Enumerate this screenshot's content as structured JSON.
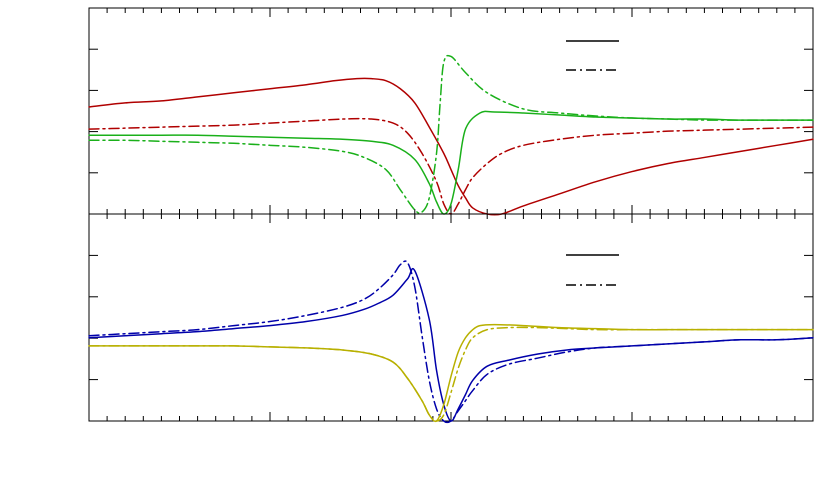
{
  "chart_data": [
    {
      "type": "line",
      "panel": "upper",
      "xlim": [
        0,
        1
      ],
      "ylim": [
        0,
        1
      ],
      "x_minor_ticks": 40,
      "x_major_ticks": 4,
      "y_ticks": 4,
      "legend": {
        "placement": "top-right",
        "entries": [
          {
            "dash": "solid"
          },
          {
            "dash": "dashdot"
          }
        ]
      },
      "series": [
        {
          "color": "#b00000",
          "dash": "solid",
          "x": [
            0,
            0.05,
            0.1,
            0.15,
            0.2,
            0.25,
            0.3,
            0.34,
            0.37,
            0.39,
            0.41,
            0.43,
            0.45,
            0.47,
            0.49,
            0.5,
            0.51,
            0.52,
            0.53,
            0.55,
            0.57,
            0.6,
            0.65,
            0.7,
            0.75,
            0.8,
            0.85,
            0.9,
            0.95,
            1
          ],
          "y": [
            0.53,
            0.55,
            0.56,
            0.58,
            0.6,
            0.62,
            0.64,
            0.66,
            0.67,
            0.67,
            0.66,
            0.62,
            0.55,
            0.43,
            0.3,
            0.22,
            0.14,
            0.08,
            0.03,
            0,
            0,
            0.04,
            0.1,
            0.16,
            0.21,
            0.25,
            0.28,
            0.31,
            0.34,
            0.37
          ]
        },
        {
          "color": "#b00000",
          "dash": "dashdot",
          "x": [
            0,
            0.05,
            0.1,
            0.15,
            0.2,
            0.25,
            0.3,
            0.35,
            0.39,
            0.42,
            0.44,
            0.46,
            0.48,
            0.49,
            0.5,
            0.51,
            0.52,
            0.53,
            0.55,
            0.57,
            0.6,
            0.65,
            0.7,
            0.75,
            0.8,
            0.85,
            0.9,
            0.95,
            1
          ],
          "y": [
            0.42,
            0.425,
            0.43,
            0.435,
            0.44,
            0.45,
            0.46,
            0.47,
            0.47,
            0.45,
            0.4,
            0.3,
            0.16,
            0.05,
            0,
            0.05,
            0.12,
            0.18,
            0.25,
            0.3,
            0.34,
            0.37,
            0.39,
            0.4,
            0.41,
            0.415,
            0.42,
            0.425,
            0.43
          ]
        },
        {
          "color": "#1ab01a",
          "dash": "solid",
          "x": [
            0,
            0.05,
            0.1,
            0.15,
            0.2,
            0.25,
            0.3,
            0.35,
            0.39,
            0.42,
            0.45,
            0.47,
            0.48,
            0.49,
            0.5,
            0.51,
            0.52,
            0.54,
            0.56,
            0.6,
            0.65,
            0.7,
            0.75,
            0.8,
            0.85,
            0.9,
            0.95,
            1
          ],
          "y": [
            0.39,
            0.39,
            0.39,
            0.39,
            0.385,
            0.38,
            0.375,
            0.37,
            0.36,
            0.34,
            0.27,
            0.15,
            0.06,
            0,
            0.05,
            0.22,
            0.42,
            0.5,
            0.505,
            0.5,
            0.49,
            0.48,
            0.475,
            0.47,
            0.47,
            0.465,
            0.465,
            0.465
          ]
        },
        {
          "color": "#1ab01a",
          "dash": "dashdot",
          "x": [
            0,
            0.05,
            0.1,
            0.15,
            0.2,
            0.25,
            0.3,
            0.35,
            0.38,
            0.41,
            0.43,
            0.45,
            0.46,
            0.47,
            0.48,
            0.485,
            0.49,
            0.5,
            0.52,
            0.55,
            0.6,
            0.65,
            0.7,
            0.75,
            0.8,
            0.85,
            0.9,
            0.95,
            1
          ],
          "y": [
            0.365,
            0.365,
            0.36,
            0.355,
            0.35,
            0.34,
            0.33,
            0.31,
            0.28,
            0.22,
            0.12,
            0.02,
            0.01,
            0.08,
            0.3,
            0.55,
            0.75,
            0.78,
            0.7,
            0.6,
            0.52,
            0.5,
            0.485,
            0.475,
            0.47,
            0.465,
            0.465,
            0.465,
            0.465
          ]
        }
      ]
    },
    {
      "type": "line",
      "panel": "lower",
      "xlim": [
        0,
        1
      ],
      "ylim": [
        0,
        1
      ],
      "x_minor_ticks": 40,
      "x_major_ticks": 4,
      "y_ticks": 4,
      "legend": {
        "placement": "top-right",
        "entries": [
          {
            "dash": "solid"
          },
          {
            "dash": "dashdot"
          }
        ]
      },
      "series": [
        {
          "color": "#0000aa",
          "dash": "solid",
          "x": [
            0,
            0.05,
            0.1,
            0.15,
            0.2,
            0.25,
            0.3,
            0.35,
            0.38,
            0.4,
            0.42,
            0.44,
            0.45,
            0.47,
            0.48,
            0.49,
            0.5,
            0.51,
            0.52,
            0.53,
            0.55,
            0.58,
            0.62,
            0.66,
            0.7,
            0.75,
            0.8,
            0.85,
            0.9,
            0.95,
            1
          ],
          "y": [
            0.41,
            0.42,
            0.43,
            0.44,
            0.455,
            0.47,
            0.49,
            0.52,
            0.55,
            0.58,
            0.62,
            0.7,
            0.74,
            0.5,
            0.25,
            0.08,
            0,
            0.06,
            0.13,
            0.2,
            0.27,
            0.3,
            0.33,
            0.35,
            0.36,
            0.37,
            0.38,
            0.39,
            0.4,
            0.4,
            0.41
          ]
        },
        {
          "color": "#0000aa",
          "dash": "dashdot",
          "x": [
            0,
            0.05,
            0.1,
            0.15,
            0.2,
            0.25,
            0.3,
            0.35,
            0.38,
            0.4,
            0.42,
            0.43,
            0.44,
            0.45,
            0.46,
            0.47,
            0.48,
            0.49,
            0.5,
            0.51,
            0.52,
            0.53,
            0.55,
            0.58,
            0.62,
            0.66,
            0.7,
            0.75,
            0.8,
            0.85,
            0.9,
            0.95,
            1
          ],
          "y": [
            0.42,
            0.43,
            0.44,
            0.45,
            0.47,
            0.49,
            0.52,
            0.56,
            0.6,
            0.65,
            0.72,
            0.77,
            0.78,
            0.66,
            0.42,
            0.2,
            0.06,
            0,
            0,
            0.05,
            0.1,
            0.15,
            0.23,
            0.28,
            0.31,
            0.34,
            0.36,
            0.37,
            0.38,
            0.39,
            0.4,
            0.4,
            0.41
          ]
        },
        {
          "color": "#b8b000",
          "dash": "solid",
          "x": [
            0,
            0.05,
            0.1,
            0.15,
            0.2,
            0.25,
            0.3,
            0.35,
            0.39,
            0.42,
            0.44,
            0.46,
            0.47,
            0.48,
            0.49,
            0.5,
            0.51,
            0.52,
            0.53,
            0.54,
            0.56,
            0.6,
            0.65,
            0.7,
            0.75,
            0.8,
            0.85,
            0.9,
            0.95,
            1
          ],
          "y": [
            0.37,
            0.37,
            0.37,
            0.37,
            0.37,
            0.365,
            0.36,
            0.35,
            0.33,
            0.29,
            0.21,
            0.1,
            0.03,
            0,
            0.08,
            0.22,
            0.34,
            0.41,
            0.45,
            0.47,
            0.475,
            0.47,
            0.46,
            0.455,
            0.45,
            0.45,
            0.45,
            0.45,
            0.45,
            0.45
          ]
        },
        {
          "color": "#b8b000",
          "dash": "dashdot",
          "x": [
            0,
            0.05,
            0.1,
            0.15,
            0.2,
            0.25,
            0.3,
            0.35,
            0.39,
            0.42,
            0.44,
            0.46,
            0.47,
            0.48,
            0.49,
            0.5,
            0.51,
            0.52,
            0.53,
            0.55,
            0.58,
            0.62,
            0.66,
            0.7,
            0.75,
            0.8,
            0.85,
            0.9,
            0.95,
            1
          ],
          "y": [
            0.37,
            0.37,
            0.37,
            0.37,
            0.37,
            0.365,
            0.36,
            0.35,
            0.33,
            0.29,
            0.21,
            0.1,
            0.03,
            0,
            0.03,
            0.14,
            0.26,
            0.35,
            0.41,
            0.45,
            0.46,
            0.46,
            0.455,
            0.45,
            0.45,
            0.45,
            0.45,
            0.45,
            0.45,
            0.45
          ]
        }
      ]
    }
  ]
}
